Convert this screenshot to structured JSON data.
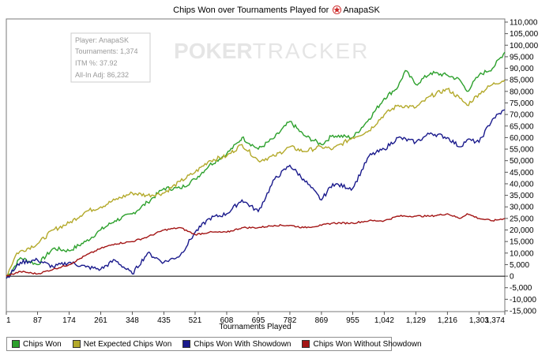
{
  "header": {
    "title_prefix": "Chips Won over Tournaments Played for",
    "player": "AnapaSK",
    "player_icon": "pokerstars-star-icon"
  },
  "watermark": {
    "text_bold": "P",
    "text_chip": "OKER",
    "text_light": "TRACKER"
  },
  "info_box": {
    "player": "Player: AnapaSK",
    "tournaments": "Tournaments: 1,374",
    "itm": "ITM %: 37.92",
    "allin_adj": "All-In Adj: 86,232"
  },
  "legend": [
    {
      "label": "Chips Won",
      "color": "#2ca02c"
    },
    {
      "label": "Net Expected Chips Won",
      "color": "#b3a92a"
    },
    {
      "label": "Chips Won With Showdown",
      "color": "#1a1a8c"
    },
    {
      "label": "Chips Won Without Showdown",
      "color": "#a31515"
    }
  ],
  "chart_data": {
    "type": "line",
    "title": "Chips Won over Tournaments Played for AnapaSK",
    "xlabel": "Tournaments Played",
    "ylabel": "",
    "xlim": [
      1,
      1374
    ],
    "ylim": [
      -15000,
      110000
    ],
    "x_ticks": [
      1,
      87,
      174,
      261,
      348,
      435,
      521,
      608,
      695,
      782,
      869,
      955,
      1042,
      1129,
      1216,
      1303,
      1374
    ],
    "x_tick_labels": [
      "1",
      "87",
      "174",
      "261",
      "348",
      "435",
      "521",
      "608",
      "695",
      "782",
      "869",
      "955",
      "1,042",
      "1,129",
      "1,216",
      "1,303",
      "1,374"
    ],
    "y_ticks": [
      -15000,
      -10000,
      -5000,
      0,
      5000,
      10000,
      15000,
      20000,
      25000,
      30000,
      35000,
      40000,
      45000,
      50000,
      55000,
      60000,
      65000,
      70000,
      75000,
      80000,
      85000,
      90000,
      95000,
      100000,
      105000,
      110000
    ],
    "y_tick_labels": [
      "-15,000",
      "-10,000",
      "-5,000",
      "0",
      "5,000",
      "10,000",
      "15,000",
      "20,000",
      "25,000",
      "30,000",
      "35,000",
      "40,000",
      "45,000",
      "50,000",
      "55,000",
      "60,000",
      "65,000",
      "70,000",
      "75,000",
      "80,000",
      "85,000",
      "90,000",
      "95,000",
      "100,000",
      "105,000",
      "110,000"
    ],
    "grid": false,
    "legend_position": "bottom",
    "series": [
      {
        "name": "Chips Won",
        "color": "#2ca02c",
        "x": [
          1,
          40,
          87,
          130,
          174,
          220,
          261,
          300,
          348,
          390,
          435,
          480,
          521,
          560,
          608,
          640,
          650,
          695,
          740,
          782,
          820,
          869,
          900,
          955,
          1000,
          1042,
          1080,
          1100,
          1129,
          1170,
          1216,
          1250,
          1270,
          1303,
          1340,
          1374
        ],
        "y": [
          -1000,
          8000,
          5000,
          12000,
          11000,
          15000,
          20000,
          24000,
          27000,
          32000,
          38000,
          38000,
          42000,
          48000,
          53000,
          58000,
          60000,
          55000,
          60000,
          67000,
          61000,
          57000,
          61000,
          60000,
          68000,
          77000,
          82000,
          89000,
          83000,
          88000,
          87000,
          85000,
          80000,
          87000,
          90000,
          97000
        ]
      },
      {
        "name": "Net Expected Chips Won",
        "color": "#b3a92a",
        "x": [
          1,
          30,
          87,
          130,
          174,
          220,
          261,
          300,
          348,
          390,
          435,
          480,
          521,
          560,
          608,
          650,
          695,
          740,
          782,
          820,
          869,
          900,
          955,
          1000,
          1042,
          1080,
          1129,
          1170,
          1216,
          1250,
          1270,
          1303,
          1340,
          1374
        ],
        "y": [
          0,
          10000,
          14000,
          20000,
          23000,
          28000,
          30000,
          33000,
          36000,
          35000,
          36000,
          41000,
          45000,
          50000,
          52000,
          57000,
          50000,
          52000,
          56000,
          54000,
          56000,
          55000,
          60000,
          63000,
          70000,
          74000,
          73000,
          78000,
          81000,
          77000,
          74000,
          79000,
          83000,
          85000
        ]
      },
      {
        "name": "Chips Won With Showdown",
        "color": "#1a1a8c",
        "x": [
          1,
          40,
          87,
          130,
          174,
          220,
          261,
          300,
          348,
          390,
          435,
          480,
          521,
          560,
          608,
          650,
          695,
          740,
          782,
          820,
          869,
          900,
          955,
          1000,
          1042,
          1080,
          1129,
          1170,
          1216,
          1250,
          1270,
          1303,
          1340,
          1374
        ],
        "y": [
          -1000,
          6000,
          7000,
          4000,
          6000,
          4000,
          3000,
          7000,
          1000,
          10000,
          6000,
          9000,
          19000,
          25000,
          27000,
          33000,
          28000,
          42000,
          48000,
          42000,
          33000,
          40000,
          38000,
          52000,
          55000,
          60000,
          58000,
          62000,
          60000,
          56000,
          59000,
          58000,
          68000,
          72000
        ]
      },
      {
        "name": "Chips Won Without Showdown",
        "color": "#a31515",
        "x": [
          1,
          40,
          87,
          130,
          174,
          220,
          261,
          300,
          348,
          390,
          435,
          480,
          521,
          560,
          608,
          650,
          695,
          740,
          782,
          820,
          869,
          900,
          955,
          1000,
          1042,
          1080,
          1129,
          1170,
          1216,
          1250,
          1270,
          1303,
          1340,
          1374
        ],
        "y": [
          0,
          2000,
          1000,
          3000,
          5000,
          9000,
          12000,
          14000,
          15000,
          17000,
          20000,
          21000,
          18000,
          19000,
          19000,
          21000,
          21000,
          22000,
          22000,
          21000,
          22000,
          23000,
          23000,
          24000,
          24000,
          26000,
          26000,
          26000,
          27000,
          25000,
          27000,
          25000,
          24000,
          25000
        ]
      }
    ]
  }
}
